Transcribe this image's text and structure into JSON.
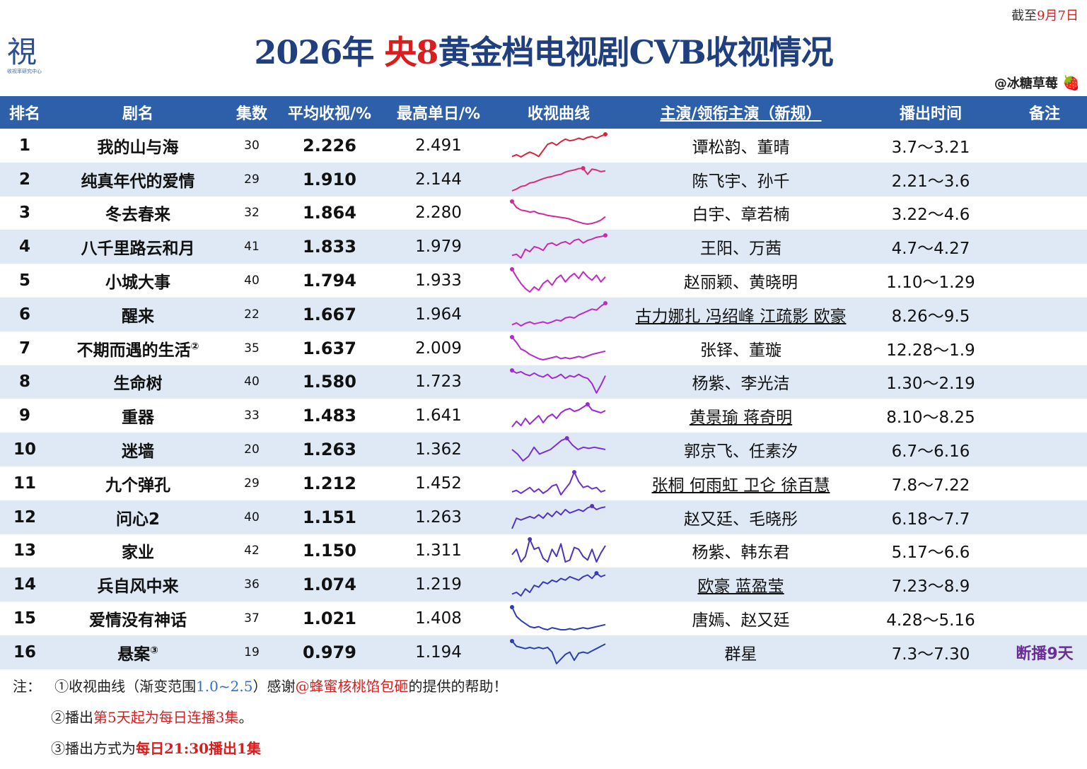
{
  "cutoff": {
    "prefix": "截至",
    "date": "9月7日"
  },
  "logo": {
    "glyph": "視",
    "caption": "收视率研究中心"
  },
  "title": {
    "part1": "2026年 ",
    "part2": "央8",
    "part3": "黄金档电视剧CVB收视情况"
  },
  "credit": {
    "text": "@冰糖草莓",
    "emoji": "🍓"
  },
  "colors": {
    "header_bg": "#2e5fa9",
    "row_alt": "#dfe9f6",
    "title_blue": "#1f3f7f",
    "accent_red": "#d81e1e",
    "note_purple": "#6a2d9a"
  },
  "chart_data": {
    "type": "table",
    "columns": [
      "排名",
      "剧名",
      "集数",
      "平均收视/%",
      "最高单日/%",
      "收视曲线",
      "主演/领衔主演（新规）",
      "播出时间",
      "备注"
    ],
    "curve_gradient_range": [
      1.0,
      2.5
    ],
    "rows": [
      {
        "rank": "1",
        "name": "我的山与海",
        "sup": "",
        "eps": "30",
        "avg": "2.226",
        "peak": "2.491",
        "cast": "谭松韵、董晴",
        "uline": false,
        "air": "3.7～3.21",
        "note": "",
        "color": "#d8233a",
        "curve": [
          1.98,
          2.02,
          1.97,
          2.03,
          2.08,
          2.04,
          1.98,
          2.12,
          2.26,
          2.3,
          2.24,
          2.32,
          2.38,
          2.34,
          2.36,
          2.4,
          2.37,
          2.42,
          2.44,
          2.4,
          2.45,
          2.49
        ]
      },
      {
        "rank": "2",
        "name": "纯真年代的爱情",
        "sup": "",
        "eps": "29",
        "avg": "1.910",
        "peak": "2.144",
        "cast": "陈飞宇、孙千",
        "uline": false,
        "air": "2.21～3.6",
        "note": "",
        "color": "#d92a7a",
        "curve": [
          1.62,
          1.66,
          1.72,
          1.74,
          1.8,
          1.82,
          1.86,
          1.9,
          1.93,
          1.95,
          1.98,
          2.0,
          2.05,
          2.08,
          2.1,
          2.13,
          2.14,
          2.0,
          2.12,
          2.1,
          2.06,
          2.08
        ]
      },
      {
        "rank": "3",
        "name": "冬去春来",
        "sup": "",
        "eps": "32",
        "avg": "1.864",
        "peak": "2.280",
        "cast": "白宇、章若楠",
        "uline": false,
        "air": "3.22～4.6",
        "note": "",
        "color": "#d02a9a",
        "curve": [
          2.28,
          2.1,
          2.02,
          2.0,
          1.96,
          1.98,
          1.92,
          1.9,
          1.86,
          1.84,
          1.82,
          1.8,
          1.78,
          1.75,
          1.7,
          1.66,
          1.62,
          1.6,
          1.62,
          1.66,
          1.72,
          1.82
        ]
      },
      {
        "rank": "4",
        "name": "八千里路云和月",
        "sup": "",
        "eps": "41",
        "avg": "1.833",
        "peak": "1.979",
        "cast": "王阳、万茜",
        "uline": false,
        "air": "4.7～4.27",
        "note": "",
        "color": "#cc2aa8",
        "curve": [
          1.66,
          1.68,
          1.62,
          1.76,
          1.72,
          1.8,
          1.78,
          1.74,
          1.84,
          1.86,
          1.82,
          1.86,
          1.88,
          1.84,
          1.9,
          1.92,
          1.86,
          1.9,
          1.92,
          1.95,
          1.96,
          1.98
        ]
      },
      {
        "rank": "5",
        "name": "小城大事",
        "sup": "",
        "eps": "40",
        "avg": "1.794",
        "peak": "1.933",
        "cast": "赵丽颖、黄晓明",
        "uline": false,
        "air": "1.10～1.29",
        "note": "",
        "color": "#c22ac2",
        "curve": [
          1.93,
          1.84,
          1.76,
          1.7,
          1.66,
          1.72,
          1.68,
          1.76,
          1.8,
          1.74,
          1.82,
          1.86,
          1.78,
          1.84,
          1.88,
          1.82,
          1.9,
          1.84,
          1.8,
          1.86,
          1.78,
          1.84
        ]
      },
      {
        "rank": "6",
        "name": "醒来",
        "sup": "",
        "eps": "22",
        "avg": "1.667",
        "peak": "1.964",
        "cast": "古力娜扎 冯绍峰 江疏影 欧豪",
        "uline": true,
        "air": "8.26～9.5",
        "note": "",
        "color": "#c02ac8",
        "curve": [
          1.52,
          1.56,
          1.5,
          1.55,
          1.58,
          1.54,
          1.56,
          1.58,
          1.55,
          1.58,
          1.62,
          1.6,
          1.66,
          1.68,
          1.66,
          1.72,
          1.76,
          1.8,
          1.84,
          1.82,
          1.9,
          1.96
        ]
      },
      {
        "rank": "7",
        "name": "不期而遇的生活",
        "sup": "②",
        "eps": "35",
        "avg": "1.637",
        "peak": "2.009",
        "cast": "张铎、董璇",
        "uline": false,
        "air": "12.28～1.9",
        "note": "",
        "color": "#b22ad0",
        "curve": [
          2.0,
          1.9,
          1.78,
          1.74,
          1.68,
          1.64,
          1.6,
          1.58,
          1.6,
          1.62,
          1.64,
          1.6,
          1.62,
          1.6,
          1.62,
          1.64,
          1.62,
          1.65,
          1.68,
          1.7,
          1.72,
          1.74
        ]
      },
      {
        "rank": "8",
        "name": "生命树",
        "sup": "",
        "eps": "40",
        "avg": "1.580",
        "peak": "1.723",
        "cast": "杨紫、李光洁",
        "uline": false,
        "air": "1.30～2.19",
        "note": "",
        "color": "#a12ad6",
        "curve": [
          1.72,
          1.68,
          1.7,
          1.66,
          1.64,
          1.68,
          1.64,
          1.62,
          1.66,
          1.6,
          1.62,
          1.66,
          1.6,
          1.64,
          1.62,
          1.66,
          1.62,
          1.6,
          1.52,
          1.38,
          1.5,
          1.64
        ]
      },
      {
        "rank": "9",
        "name": "重器",
        "sup": "",
        "eps": "33",
        "avg": "1.483",
        "peak": "1.641",
        "cast": "黄景瑜 蒋奇明",
        "uline": true,
        "air": "8.10～8.25",
        "note": "",
        "color": "#9a2ad8",
        "curve": [
          1.32,
          1.4,
          1.34,
          1.44,
          1.36,
          1.42,
          1.48,
          1.38,
          1.46,
          1.5,
          1.44,
          1.52,
          1.56,
          1.58,
          1.54,
          1.56,
          1.6,
          1.64,
          1.56,
          1.54,
          1.52,
          1.55
        ]
      },
      {
        "rank": "10",
        "name": "迷墙",
        "sup": "",
        "eps": "20",
        "avg": "1.263",
        "peak": "1.362",
        "cast": "郭京飞、任素汐",
        "uline": false,
        "air": "6.7～6.16",
        "note": "",
        "color": "#7b30d2",
        "curve": [
          1.26,
          1.22,
          1.16,
          1.2,
          1.28,
          1.22,
          1.24,
          1.26,
          1.3,
          1.34,
          1.36,
          1.3,
          1.26,
          1.28,
          1.27,
          1.28,
          1.27,
          1.26
        ]
      },
      {
        "rank": "11",
        "name": "九个弹孔",
        "sup": "",
        "eps": "29",
        "avg": "1.212",
        "peak": "1.452",
        "cast": "张桐 何雨虹 卫仑 徐百慧",
        "uline": true,
        "air": "7.8～7.22",
        "note": "",
        "color": "#6a32cc",
        "curve": [
          1.18,
          1.2,
          1.16,
          1.2,
          1.24,
          1.18,
          1.22,
          1.16,
          1.2,
          1.26,
          1.28,
          1.14,
          1.22,
          1.3,
          1.45,
          1.32,
          1.24,
          1.26,
          1.22,
          1.24,
          1.18,
          1.2
        ]
      },
      {
        "rank": "12",
        "name": "问心2",
        "sup": "",
        "eps": "40",
        "avg": "1.151",
        "peak": "1.263",
        "cast": "赵又廷、毛晓彤",
        "uline": false,
        "air": "6.18～7.7",
        "note": "",
        "color": "#5534c4",
        "curve": [
          1.0,
          1.12,
          1.1,
          1.12,
          1.14,
          1.12,
          1.16,
          1.12,
          1.18,
          1.14,
          1.2,
          1.16,
          1.22,
          1.18,
          1.2,
          1.22,
          1.2,
          1.24,
          1.26,
          1.22,
          1.24,
          1.25
        ]
      },
      {
        "rank": "13",
        "name": "家业",
        "sup": "",
        "eps": "42",
        "avg": "1.150",
        "peak": "1.311",
        "cast": "杨紫、韩东君",
        "uline": false,
        "air": "5.17～6.6",
        "note": "",
        "color": "#4836be",
        "curve": [
          1.14,
          1.2,
          1.06,
          1.12,
          1.31,
          1.2,
          1.22,
          1.1,
          1.06,
          1.2,
          1.12,
          1.26,
          1.06,
          1.08,
          1.22,
          1.2,
          1.12,
          1.08,
          1.2,
          1.06,
          1.16,
          1.24
        ]
      },
      {
        "rank": "14",
        "name": "兵自风中来",
        "sup": "",
        "eps": "36",
        "avg": "1.074",
        "peak": "1.219",
        "cast": "欧豪 蓝盈莹",
        "uline": true,
        "air": "7.23～8.9",
        "note": "",
        "color": "#3a3ab8",
        "curve": [
          0.98,
          1.0,
          0.96,
          1.04,
          1.0,
          1.08,
          1.06,
          1.12,
          1.1,
          1.14,
          1.12,
          1.16,
          1.14,
          1.18,
          1.16,
          1.14,
          1.18,
          1.2,
          1.16,
          1.22,
          1.18,
          1.2
        ]
      },
      {
        "rank": "15",
        "name": "爱情没有神话",
        "sup": "",
        "eps": "37",
        "avg": "1.021",
        "peak": "1.408",
        "cast": "唐嫣、赵又廷",
        "uline": false,
        "air": "4.28～5.16",
        "note": "",
        "color": "#2e3cb0",
        "curve": [
          1.4,
          1.22,
          1.14,
          1.08,
          1.02,
          1.0,
          1.02,
          0.98,
          0.96,
          1.0,
          0.98,
          0.96,
          0.96,
          0.98,
          0.96,
          0.98,
          1.0,
          0.98,
          1.0,
          1.02,
          1.04,
          1.06
        ]
      },
      {
        "rank": "16",
        "name": "悬案",
        "sup": "③",
        "eps": "19",
        "avg": "0.979",
        "peak": "1.194",
        "cast": "群星",
        "uline": false,
        "air": "7.3～7.30",
        "note": "断播9天",
        "color": "#2a40aa",
        "curve": [
          1.19,
          1.1,
          1.08,
          1.06,
          1.08,
          1.06,
          1.08,
          1.06,
          1.08,
          1.0,
          0.8,
          0.88,
          0.96,
          1.0,
          0.86,
          0.98,
          1.0,
          0.98,
          1.02,
          1.06,
          1.1,
          1.14
        ]
      }
    ]
  },
  "notes": {
    "label": "注：",
    "n1": {
      "a": "①收视曲线（渐变范围",
      "b": "1.0~2.5",
      "c": "）感谢",
      "d": "@蜂蜜核桃馅包砸",
      "e": "的提供的帮助！"
    },
    "n2": {
      "a": "②播出",
      "b": "第5天起为每日连播3集",
      "c": "。"
    },
    "n3": {
      "a": "③播出方式为",
      "b": "每日21:30播出1集"
    }
  }
}
